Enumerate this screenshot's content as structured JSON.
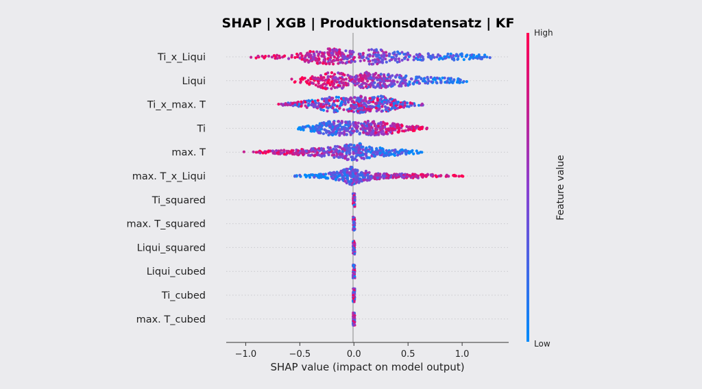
{
  "chart_data": {
    "type": "scatter",
    "subtype": "shap-beeswarm",
    "title": "SHAP | XGB | Produktionsdatensatz | KF",
    "xlabel": "SHAP value (impact on model output)",
    "ylabel": "",
    "xlim": [
      -1.18,
      1.43
    ],
    "x_ticks": [
      -1.0,
      -0.5,
      0.0,
      0.5,
      1.0
    ],
    "x_tick_labels": [
      "−1.0",
      "−0.5",
      "0.0",
      "0.5",
      "1.0"
    ],
    "grid": "horizontal-dotted",
    "colorbar": {
      "label": "Feature value",
      "high_label": "High",
      "low_label": "Low",
      "high_color": "#ff0052",
      "low_color": "#008bfb",
      "placement": "right"
    },
    "features": [
      {
        "name": "Ti_x_Liqui",
        "min": -0.98,
        "max": 1.33,
        "direction": "negative",
        "density": [
          [
            -0.98,
            0.1
          ],
          [
            -0.6,
            0.25
          ],
          [
            -0.4,
            0.6
          ],
          [
            -0.2,
            0.9
          ],
          [
            -0.05,
            0.7
          ],
          [
            0.05,
            0.4
          ],
          [
            0.15,
            0.9
          ],
          [
            0.3,
            0.7
          ],
          [
            0.5,
            0.4
          ],
          [
            0.8,
            0.3
          ],
          [
            1.0,
            0.35
          ],
          [
            1.15,
            0.25
          ],
          [
            1.33,
            0.06
          ]
        ]
      },
      {
        "name": "Liqui",
        "min": -0.62,
        "max": 1.08,
        "direction": "negative",
        "density": [
          [
            -0.62,
            0.1
          ],
          [
            -0.4,
            0.5
          ],
          [
            -0.25,
            0.9
          ],
          [
            -0.1,
            0.8
          ],
          [
            0.0,
            0.4
          ],
          [
            0.1,
            0.9
          ],
          [
            0.3,
            0.7
          ],
          [
            0.5,
            0.5
          ],
          [
            0.8,
            0.3
          ],
          [
            1.0,
            0.2
          ],
          [
            1.08,
            0.06
          ]
        ]
      },
      {
        "name": "Ti_x_max. T",
        "min": -0.7,
        "max": 0.65,
        "direction": "mixed",
        "density": [
          [
            -0.7,
            0.06
          ],
          [
            -0.5,
            0.3
          ],
          [
            -0.35,
            0.5
          ],
          [
            -0.2,
            0.8
          ],
          [
            -0.05,
            0.7
          ],
          [
            0.05,
            0.9
          ],
          [
            0.15,
            0.7
          ],
          [
            0.25,
            0.9
          ],
          [
            0.35,
            0.6
          ],
          [
            0.45,
            0.3
          ],
          [
            0.55,
            0.15
          ],
          [
            0.65,
            0.06
          ]
        ]
      },
      {
        "name": "Ti",
        "min": -0.53,
        "max": 0.68,
        "direction": "positive",
        "density": [
          [
            -0.53,
            0.06
          ],
          [
            -0.4,
            0.3
          ],
          [
            -0.2,
            0.8
          ],
          [
            -0.05,
            0.7
          ],
          [
            0.05,
            0.6
          ],
          [
            0.15,
            0.8
          ],
          [
            0.3,
            0.6
          ],
          [
            0.45,
            0.4
          ],
          [
            0.6,
            0.2
          ],
          [
            0.68,
            0.06
          ]
        ]
      },
      {
        "name": "max. T",
        "min": -1.06,
        "max": 0.63,
        "direction": "negative",
        "density": [
          [
            -1.06,
            0.05
          ],
          [
            -0.8,
            0.15
          ],
          [
            -0.5,
            0.3
          ],
          [
            -0.25,
            0.5
          ],
          [
            -0.05,
            0.8
          ],
          [
            0.05,
            0.95
          ],
          [
            0.15,
            0.6
          ],
          [
            0.3,
            0.4
          ],
          [
            0.5,
            0.25
          ],
          [
            0.63,
            0.06
          ]
        ]
      },
      {
        "name": "max. T_x_Liqui",
        "min": -0.57,
        "max": 1.01,
        "direction": "positive",
        "density": [
          [
            -0.57,
            0.06
          ],
          [
            -0.3,
            0.2
          ],
          [
            -0.12,
            0.5
          ],
          [
            -0.03,
            0.95
          ],
          [
            0.05,
            0.7
          ],
          [
            0.15,
            0.4
          ],
          [
            0.3,
            0.25
          ],
          [
            0.6,
            0.2
          ],
          [
            0.85,
            0.12
          ],
          [
            1.01,
            0.05
          ]
        ]
      },
      {
        "name": "Ti_squared",
        "min": -0.01,
        "max": 0.01,
        "direction": "mixed",
        "density": [
          [
            0.0,
            0.9
          ]
        ]
      },
      {
        "name": "max. T_squared",
        "min": -0.01,
        "max": 0.01,
        "direction": "mixed",
        "density": [
          [
            0.0,
            0.9
          ]
        ]
      },
      {
        "name": "Liqui_squared",
        "min": -0.01,
        "max": 0.01,
        "direction": "mixed",
        "density": [
          [
            0.0,
            0.9
          ]
        ]
      },
      {
        "name": "Liqui_cubed",
        "min": -0.01,
        "max": 0.01,
        "direction": "mixed",
        "density": [
          [
            0.0,
            0.9
          ]
        ]
      },
      {
        "name": "Ti_cubed",
        "min": -0.01,
        "max": 0.01,
        "direction": "mixed",
        "density": [
          [
            0.0,
            0.9
          ]
        ]
      },
      {
        "name": "max. T_cubed",
        "min": -0.01,
        "max": 0.01,
        "direction": "mixed",
        "density": [
          [
            0.0,
            0.9
          ]
        ]
      }
    ]
  }
}
